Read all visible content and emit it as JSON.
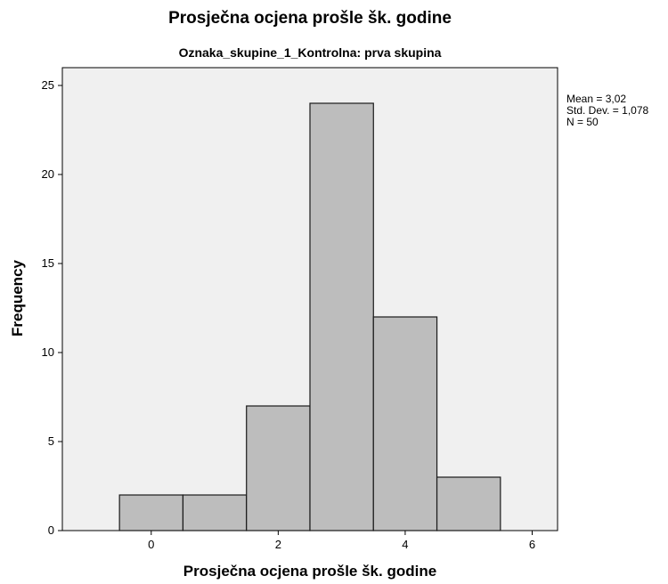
{
  "chart_data": {
    "type": "bar",
    "title": "Prosječna ocjena prošle šk. godine",
    "subtitle": "Oznaka_skupine_1_Kontrolna: prva skupina",
    "xlabel": "Prosječna ocjena prošle šk. godine",
    "ylabel": "Frequency",
    "xlim": [
      -1.4,
      6.4
    ],
    "ylim": [
      0,
      26
    ],
    "xticks": [
      0,
      2,
      4,
      6
    ],
    "yticks": [
      0,
      5,
      10,
      15,
      20,
      25
    ],
    "bin_width": 1,
    "bins": [
      {
        "center": 0,
        "value": 2
      },
      {
        "center": 1,
        "value": 2
      },
      {
        "center": 2,
        "value": 7
      },
      {
        "center": 3,
        "value": 24
      },
      {
        "center": 4,
        "value": 12
      },
      {
        "center": 5,
        "value": 3
      }
    ],
    "stats": {
      "mean": "Mean = 3,02",
      "std": "Std. Dev. = 1,078",
      "n": "N = 50"
    },
    "colors": {
      "bar_fill": "#bdbdbd",
      "bar_stroke": "#1a1a1a",
      "plot_bg": "#f0f0f0"
    },
    "grid": false,
    "legend": "none"
  }
}
